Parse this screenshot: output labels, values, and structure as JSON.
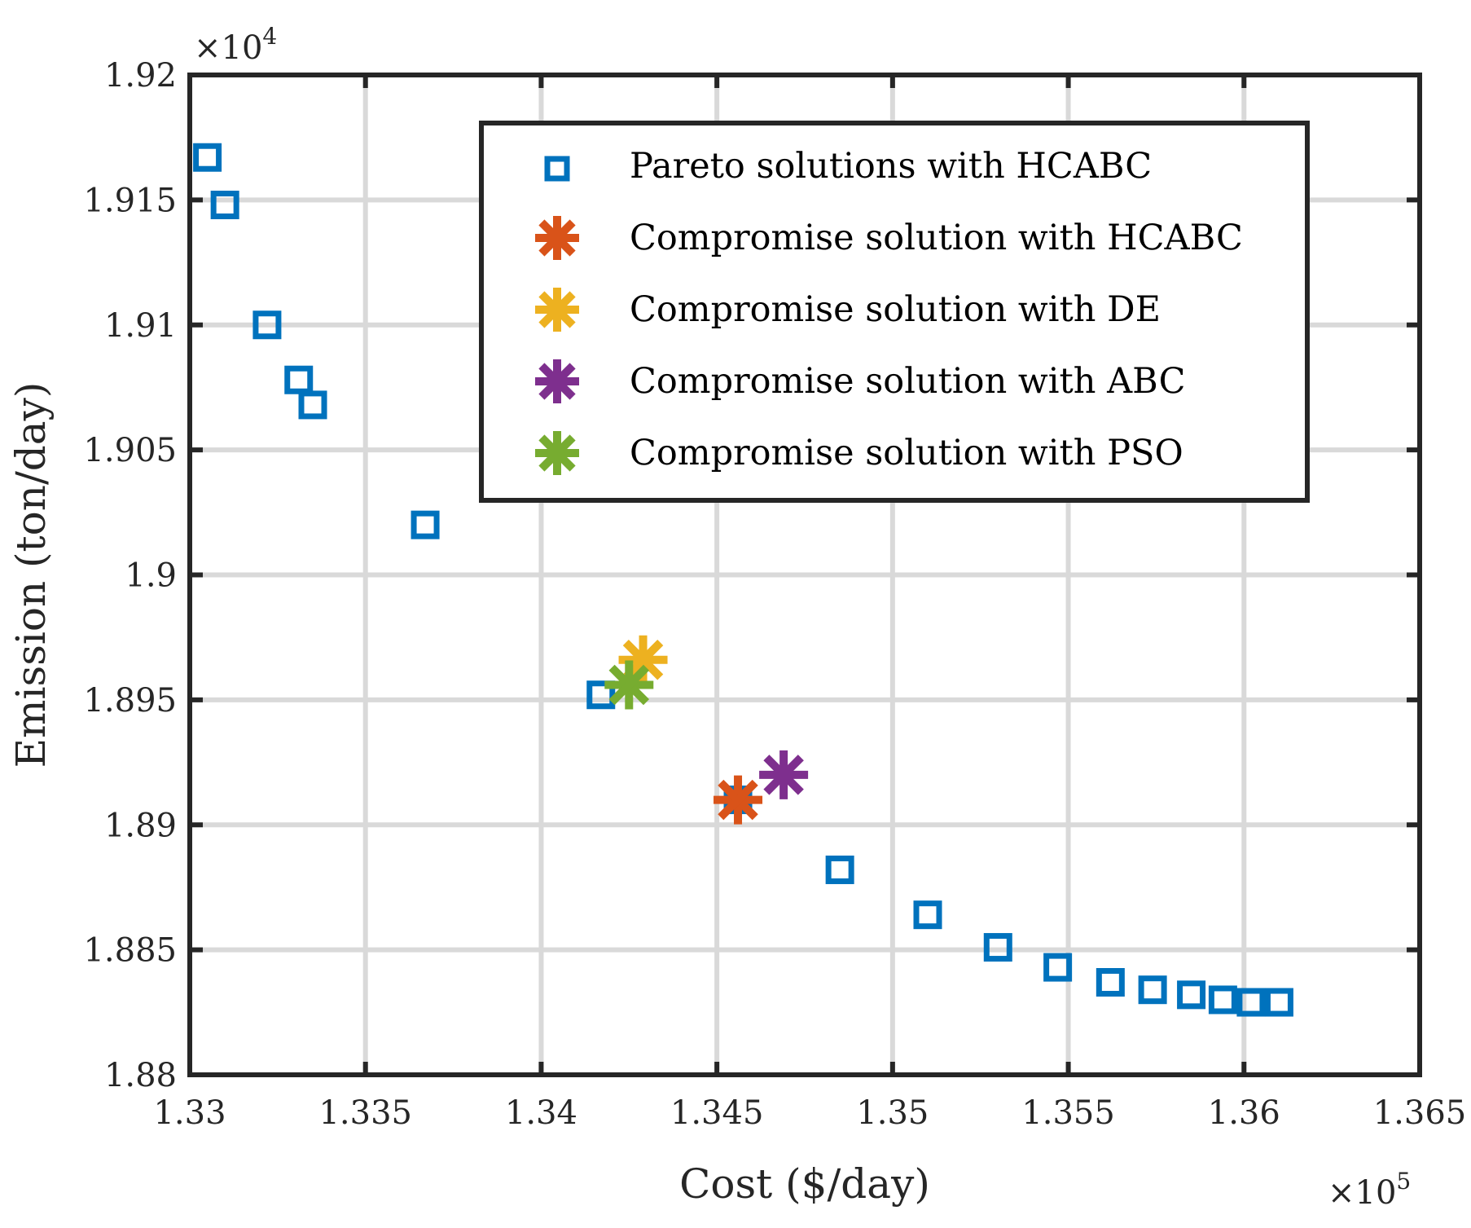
{
  "chart_data": {
    "type": "scatter",
    "xlabel": "Cost ($/day)",
    "ylabel": "Emission (ton/day)",
    "x_exponent": {
      "base": "×10",
      "power": "5"
    },
    "y_exponent": {
      "base": "×10",
      "power": "4"
    },
    "xlim": [
      1.33,
      1.365
    ],
    "ylim": [
      1.88,
      1.92
    ],
    "xticks": [
      1.33,
      1.335,
      1.34,
      1.345,
      1.35,
      1.355,
      1.36,
      1.365
    ],
    "xtick_labels": [
      "1.33",
      "1.335",
      "1.34",
      "1.345",
      "1.35",
      "1.355",
      "1.36",
      "1.365"
    ],
    "yticks": [
      1.88,
      1.885,
      1.89,
      1.895,
      1.9,
      1.905,
      1.91,
      1.915,
      1.92
    ],
    "ytick_labels": [
      "1.88",
      "1.885",
      "1.89",
      "1.895",
      "1.9",
      "1.905",
      "1.91",
      "1.915",
      "1.92"
    ],
    "grid": true,
    "legend_position": "top-right",
    "series": [
      {
        "name": "Pareto solutions with HCABC",
        "marker": "square",
        "color": "#0072BD",
        "points": [
          [
            1.3305,
            1.9167
          ],
          [
            1.331,
            1.9148
          ],
          [
            1.3322,
            1.91
          ],
          [
            1.3331,
            1.9078
          ],
          [
            1.3335,
            1.9068
          ],
          [
            1.3367,
            1.902
          ],
          [
            1.3417,
            1.8952
          ],
          [
            1.3456,
            1.891
          ],
          [
            1.3485,
            1.8882
          ],
          [
            1.351,
            1.8864
          ],
          [
            1.353,
            1.8851
          ],
          [
            1.3547,
            1.8843
          ],
          [
            1.3562,
            1.8837
          ],
          [
            1.3574,
            1.8834
          ],
          [
            1.3585,
            1.8832
          ],
          [
            1.3594,
            1.883
          ],
          [
            1.3602,
            1.8829
          ],
          [
            1.361,
            1.8829
          ]
        ]
      },
      {
        "name": "Compromise solution with HCABC",
        "marker": "asterisk",
        "color": "#D95319",
        "points": [
          [
            1.3456,
            1.891
          ]
        ]
      },
      {
        "name": "Compromise solution with DE",
        "marker": "asterisk",
        "color": "#EDB120",
        "points": [
          [
            1.3429,
            1.8966
          ]
        ]
      },
      {
        "name": "Compromise solution with ABC",
        "marker": "asterisk",
        "color": "#7E2F8E",
        "points": [
          [
            1.3469,
            1.892
          ]
        ]
      },
      {
        "name": "Compromise solution with PSO",
        "marker": "asterisk",
        "color": "#77AC30",
        "points": [
          [
            1.3425,
            1.8956
          ]
        ]
      }
    ]
  },
  "colors": {
    "axis": "#262626",
    "grid": "#D9D9D9",
    "background": "#FFFFFF"
  }
}
